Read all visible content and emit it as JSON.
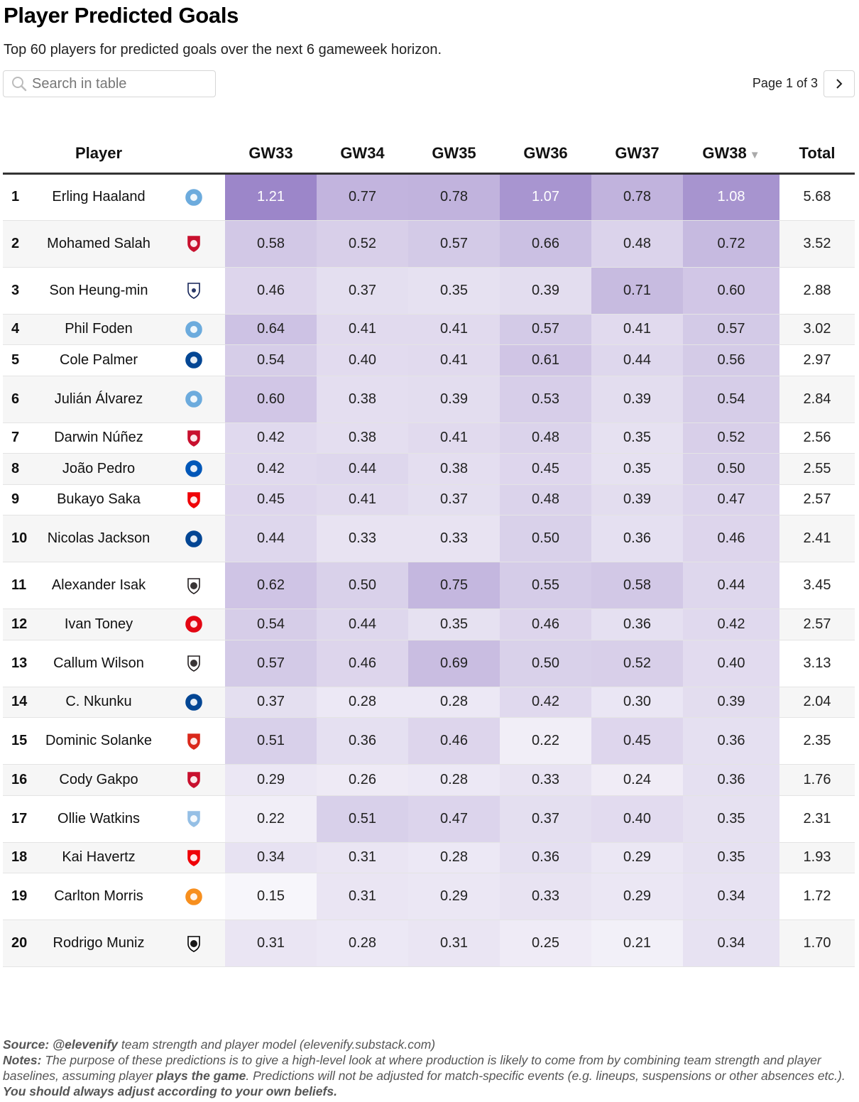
{
  "title": "Player Predicted Goals",
  "subtitle": "Top 60 players for predicted goals over the next 6 gameweek horizon.",
  "search": {
    "placeholder": "Search in table"
  },
  "pagination": {
    "label": "Page 1 of 3"
  },
  "table": {
    "headers": {
      "player": "Player",
      "gw33": "GW33",
      "gw34": "GW34",
      "gw35": "GW35",
      "gw36": "GW36",
      "gw37": "GW37",
      "gw38": "GW38",
      "total": "Total"
    },
    "sorted_column": "GW38",
    "sort_direction": "descending",
    "rows": [
      {
        "rank": "1",
        "player": "Erling Haaland",
        "club": "man-city",
        "gw": [
          "1.21",
          "0.77",
          "0.78",
          "1.07",
          "0.78",
          "1.08"
        ],
        "total": "5.68"
      },
      {
        "rank": "2",
        "player": "Mohamed Salah",
        "club": "liverpool",
        "gw": [
          "0.58",
          "0.52",
          "0.57",
          "0.66",
          "0.48",
          "0.72"
        ],
        "total": "3.52"
      },
      {
        "rank": "3",
        "player": "Son Heung-min",
        "club": "tottenham",
        "gw": [
          "0.46",
          "0.37",
          "0.35",
          "0.39",
          "0.71",
          "0.60"
        ],
        "total": "2.88"
      },
      {
        "rank": "4",
        "player": "Phil Foden",
        "club": "man-city",
        "gw": [
          "0.64",
          "0.41",
          "0.41",
          "0.57",
          "0.41",
          "0.57"
        ],
        "total": "3.02"
      },
      {
        "rank": "5",
        "player": "Cole Palmer",
        "club": "chelsea",
        "gw": [
          "0.54",
          "0.40",
          "0.41",
          "0.61",
          "0.44",
          "0.56"
        ],
        "total": "2.97"
      },
      {
        "rank": "6",
        "player": "Julián Álvarez",
        "club": "man-city",
        "gw": [
          "0.60",
          "0.38",
          "0.39",
          "0.53",
          "0.39",
          "0.54"
        ],
        "total": "2.84"
      },
      {
        "rank": "7",
        "player": "Darwin Núñez",
        "club": "liverpool",
        "gw": [
          "0.42",
          "0.38",
          "0.41",
          "0.48",
          "0.35",
          "0.52"
        ],
        "total": "2.56"
      },
      {
        "rank": "8",
        "player": "João Pedro",
        "club": "brighton",
        "gw": [
          "0.42",
          "0.44",
          "0.38",
          "0.45",
          "0.35",
          "0.50"
        ],
        "total": "2.55"
      },
      {
        "rank": "9",
        "player": "Bukayo Saka",
        "club": "arsenal",
        "gw": [
          "0.45",
          "0.41",
          "0.37",
          "0.48",
          "0.39",
          "0.47"
        ],
        "total": "2.57"
      },
      {
        "rank": "10",
        "player": "Nicolas Jackson",
        "club": "chelsea",
        "gw": [
          "0.44",
          "0.33",
          "0.33",
          "0.50",
          "0.36",
          "0.46"
        ],
        "total": "2.41"
      },
      {
        "rank": "11",
        "player": "Alexander Isak",
        "club": "newcastle",
        "gw": [
          "0.62",
          "0.50",
          "0.75",
          "0.55",
          "0.58",
          "0.44"
        ],
        "total": "3.45"
      },
      {
        "rank": "12",
        "player": "Ivan Toney",
        "club": "brentford",
        "gw": [
          "0.54",
          "0.44",
          "0.35",
          "0.46",
          "0.36",
          "0.42"
        ],
        "total": "2.57"
      },
      {
        "rank": "13",
        "player": "Callum Wilson",
        "club": "newcastle",
        "gw": [
          "0.57",
          "0.46",
          "0.69",
          "0.50",
          "0.52",
          "0.40"
        ],
        "total": "3.13"
      },
      {
        "rank": "14",
        "player": "C. Nkunku",
        "club": "chelsea",
        "gw": [
          "0.37",
          "0.28",
          "0.28",
          "0.42",
          "0.30",
          "0.39"
        ],
        "total": "2.04"
      },
      {
        "rank": "15",
        "player": "Dominic Solanke",
        "club": "bournemouth",
        "gw": [
          "0.51",
          "0.36",
          "0.46",
          "0.22",
          "0.45",
          "0.36"
        ],
        "total": "2.35"
      },
      {
        "rank": "16",
        "player": "Cody Gakpo",
        "club": "liverpool",
        "gw": [
          "0.29",
          "0.26",
          "0.28",
          "0.33",
          "0.24",
          "0.36"
        ],
        "total": "1.76"
      },
      {
        "rank": "17",
        "player": "Ollie Watkins",
        "club": "aston-villa",
        "gw": [
          "0.22",
          "0.51",
          "0.47",
          "0.37",
          "0.40",
          "0.35"
        ],
        "total": "2.31"
      },
      {
        "rank": "18",
        "player": "Kai Havertz",
        "club": "arsenal",
        "gw": [
          "0.34",
          "0.31",
          "0.28",
          "0.36",
          "0.29",
          "0.35"
        ],
        "total": "1.93"
      },
      {
        "rank": "19",
        "player": "Carlton Morris",
        "club": "luton",
        "gw": [
          "0.15",
          "0.31",
          "0.29",
          "0.33",
          "0.29",
          "0.34"
        ],
        "total": "1.72"
      },
      {
        "rank": "20",
        "player": "Rodrigo Muniz",
        "club": "fulham",
        "gw": [
          "0.31",
          "0.28",
          "0.31",
          "0.25",
          "0.21",
          "0.34"
        ],
        "total": "1.70"
      }
    ]
  },
  "colors": {
    "heat_low": "#faf9fc",
    "heat_high": "#9c86c9",
    "header_rule": "#333333",
    "row_stripe": "#f6f6f6",
    "club_colors": {
      "man-city": "#6cabdd",
      "liverpool": "#c8102e",
      "tottenham": "#132257",
      "chelsea": "#034694",
      "brighton": "#0057b8",
      "arsenal": "#ef0107",
      "newcastle": "#241f20",
      "brentford": "#e30613",
      "bournemouth": "#da291c",
      "aston-villa": "#95bfe5",
      "luton": "#f78f1e",
      "fulham": "#000000"
    }
  },
  "footer": {
    "source_label": "Source:",
    "source_handle": "@elevenify",
    "source_text": " team strength and player model (elevenify.substack.com)",
    "notes_label": "Notes:",
    "notes_text_1": " The purpose of these predictions is to give a high-level look at where production is likely to come from by combining team strength and player baselines, assuming player ",
    "notes_bold_1": "plays the game",
    "notes_text_2": ". Predictions will not be adjusted for match-specific events (e.g. lineups, suspensions or other absences etc.). ",
    "notes_bold_2": "You should always adjust according to your own beliefs."
  }
}
